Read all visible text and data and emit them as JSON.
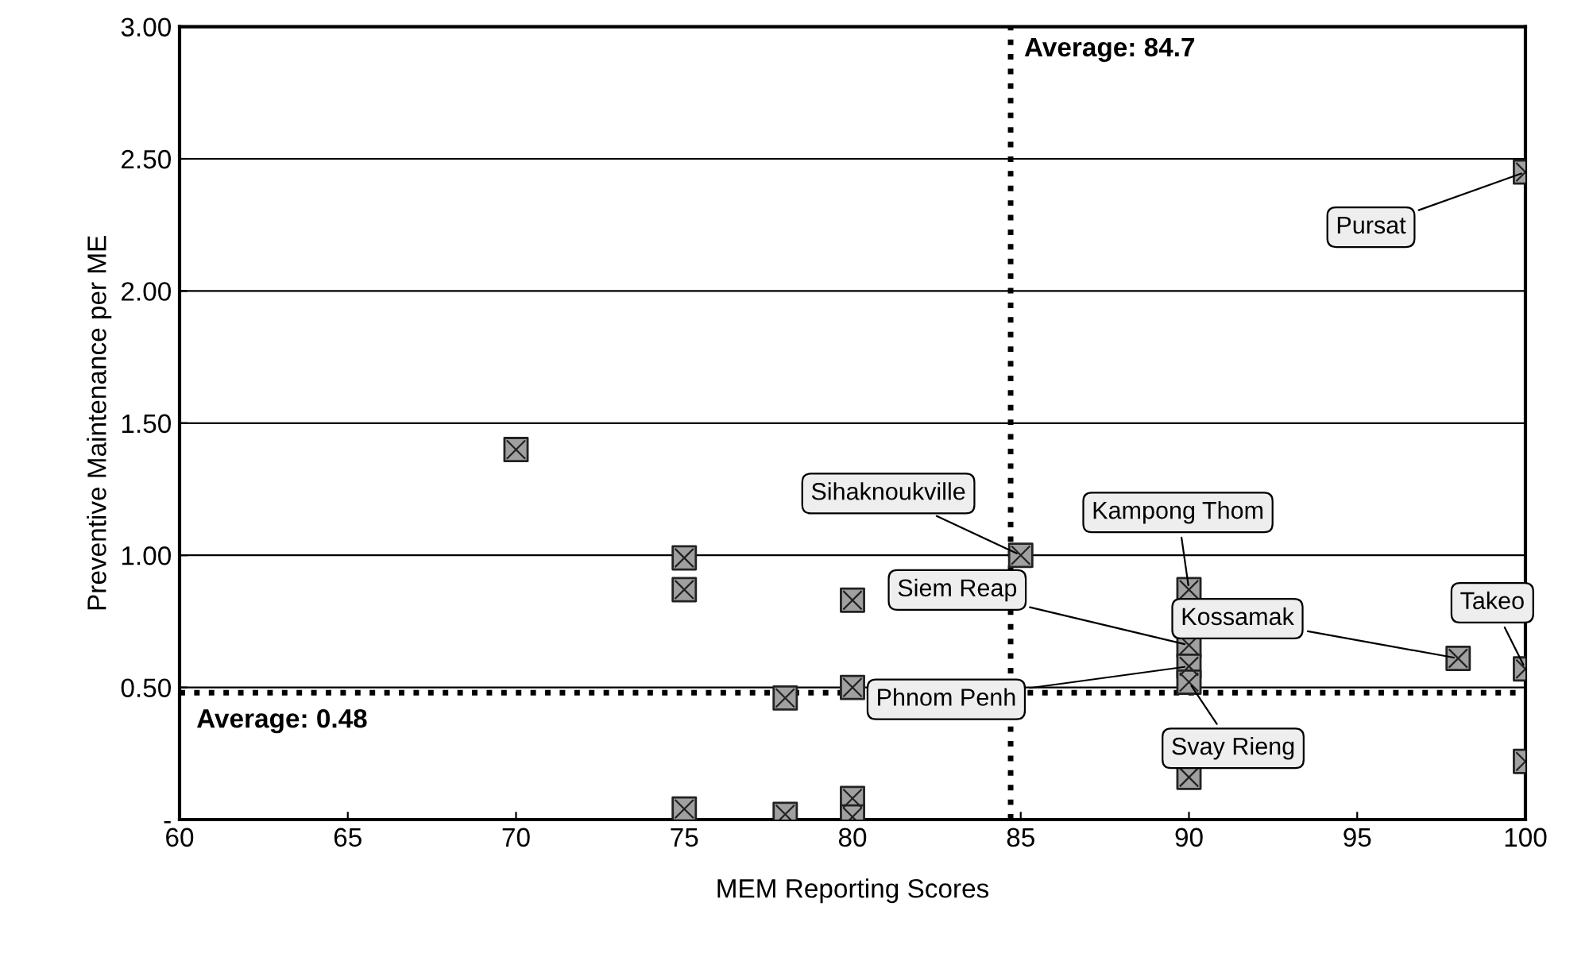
{
  "chart_data": {
    "type": "scatter",
    "xlabel": "MEM Reporting Scores",
    "ylabel": "Preventive Maintenance per ME",
    "x": [
      70,
      75,
      75,
      75,
      78,
      78,
      80,
      80,
      80,
      80,
      85,
      90,
      90,
      90,
      90,
      90,
      98,
      100,
      100,
      100
    ],
    "values": [
      1.4,
      0.99,
      0.87,
      0.04,
      0.46,
      0.02,
      0.83,
      0.5,
      0.08,
      0.01,
      1.0,
      0.87,
      0.66,
      0.58,
      0.52,
      0.16,
      0.61,
      2.45,
      0.57,
      0.22
    ],
    "color": "#a0a0a0",
    "marker": "square",
    "xlim": [
      60,
      100
    ],
    "xticks": [
      60,
      65,
      70,
      75,
      80,
      85,
      90,
      95,
      100
    ],
    "ylim": [
      0,
      3
    ],
    "yticks": [
      {
        "value": 0,
        "label": "-"
      },
      {
        "value": 0.5,
        "label": "0.50"
      },
      {
        "value": 1,
        "label": "1.00"
      },
      {
        "value": 1.5,
        "label": "1.50"
      },
      {
        "value": 2,
        "label": "2.00"
      },
      {
        "value": 2.5,
        "label": "2.50"
      },
      {
        "value": 3,
        "label": "3.00"
      }
    ],
    "grid": "y",
    "ref_lines": [
      {
        "axis": "x",
        "value": 84.7,
        "label": "Average: 84.7",
        "line_style": "dotted",
        "color": "#000000"
      },
      {
        "axis": "y",
        "value": 0.48,
        "label": "Average: 0.48",
        "line_style": "dotted",
        "color": "#000000"
      }
    ],
    "annotations": [
      {
        "text": "Pursat",
        "x": 100,
        "y": 2.45
      },
      {
        "text": "Sihaknoukville",
        "x": 85,
        "y": 1.0
      },
      {
        "text": "Kampong Thom",
        "x": 90,
        "y": 0.87
      },
      {
        "text": "Siem Reap",
        "x": 90,
        "y": 0.66
      },
      {
        "text": "Phnom Penh",
        "x": 90,
        "y": 0.58
      },
      {
        "text": "Svay Rieng",
        "x": 90,
        "y": 0.52
      },
      {
        "text": "Kossamak",
        "x": 98,
        "y": 0.61
      },
      {
        "text": "Takeo",
        "x": 100,
        "y": 0.57
      }
    ]
  }
}
